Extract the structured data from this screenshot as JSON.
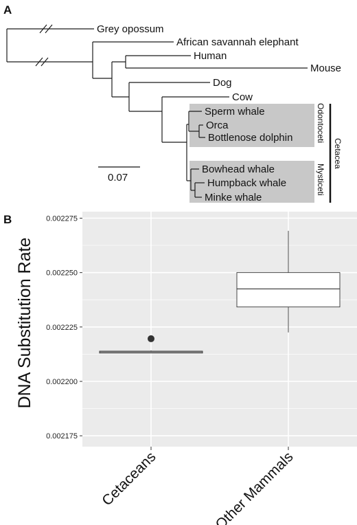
{
  "panel_a": {
    "label": "A",
    "taxa": [
      "Grey opossum",
      "African savannah elephant",
      "Human",
      "Mouse",
      "Dog",
      "Cow",
      "Sperm whale",
      "Orca",
      "Bottlenose dolphin",
      "Bowhead whale",
      "Humpback whale",
      "Minke whale"
    ],
    "clades": {
      "odontoceti": "Odontoceti",
      "mysticeti": "Mysticeti",
      "cetacea": "Cetacea"
    },
    "scale_bar": "0.07",
    "colors": {
      "clade_highlight": "#c8c8c8"
    }
  },
  "panel_b": {
    "label": "B",
    "colors": {
      "panel_bg": "#ebebeb",
      "grid": "#ffffff",
      "outlier": "#333333"
    }
  },
  "chart_data": {
    "type": "box",
    "title": "",
    "xlabel": "",
    "ylabel": "DNA Substitution Rate",
    "ylim": [
      0.00217,
      0.002278
    ],
    "yticks": [
      "0.002175",
      "0.002200",
      "0.002225",
      "0.002250",
      "0.002275"
    ],
    "tick_values": [
      0.002175,
      0.0022,
      0.002225,
      0.00225,
      0.002275
    ],
    "categories": [
      "Cetaceans",
      "Other Mammals"
    ],
    "boxes": [
      {
        "category": "Cetaceans",
        "whisker_low": 0.002213,
        "q1": 0.002213,
        "median": 0.0022135,
        "q3": 0.0022139,
        "whisker_high": 0.0022142,
        "outliers": [
          0.0022196
        ]
      },
      {
        "category": "Other Mammals",
        "whisker_low": 0.0022225,
        "q1": 0.0022342,
        "median": 0.0022425,
        "q3": 0.00225,
        "whisker_high": 0.0022692,
        "outliers": []
      }
    ],
    "grid": true
  }
}
